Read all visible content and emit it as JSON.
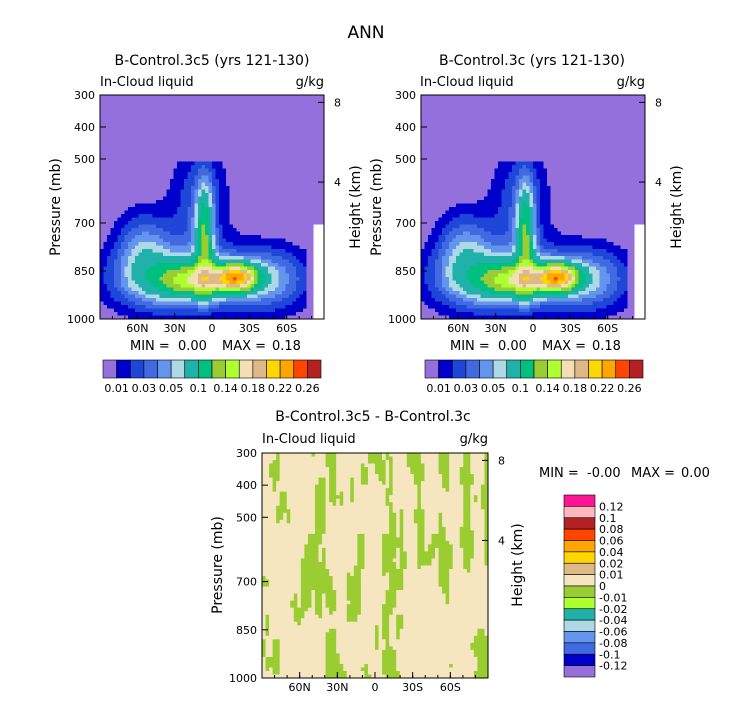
{
  "page_title": "ANN",
  "chart_data": [
    {
      "type": "heatmap",
      "title": "B-Control.3c5 (yrs 121-130)",
      "subtitle_left": "In-Cloud liquid",
      "subtitle_right": "g/kg",
      "ylabel": "Pressure (mb)",
      "ylabel_right": "Height (km)",
      "y_ticks": [
        "300",
        "400",
        "500",
        "700",
        "850",
        "1000"
      ],
      "y_tick_values": [
        300,
        400,
        500,
        700,
        850,
        1000
      ],
      "y_right_ticks": [
        "8",
        "4"
      ],
      "y_right_values": [
        8,
        4
      ],
      "x_ticks": [
        "60N",
        "30N",
        "0",
        "30S",
        "60S"
      ],
      "x_tick_values": [
        60,
        30,
        0,
        -30,
        -60
      ],
      "xlim": [
        90,
        -90
      ],
      "ylim": [
        300,
        1000
      ],
      "min_label": "MIN =",
      "min_value": "0.00",
      "max_label": "MAX =",
      "max_value": "0.18",
      "levels": [
        0.01,
        0.02,
        0.03,
        0.04,
        0.05,
        0.06,
        0.08,
        0.1,
        0.12,
        0.14,
        0.16,
        0.18,
        0.2,
        0.22,
        0.24,
        0.26
      ],
      "colorbar_labels": [
        "0.01",
        "0.03",
        "0.05",
        "0.1",
        "0.14",
        "0.18",
        "0.22",
        "0.26"
      ]
    },
    {
      "type": "heatmap",
      "title": "B-Control.3c (yrs 121-130)",
      "subtitle_left": "In-Cloud liquid",
      "subtitle_right": "g/kg",
      "ylabel": "Pressure (mb)",
      "ylabel_right": "Height (km)",
      "y_ticks": [
        "300",
        "400",
        "500",
        "700",
        "850",
        "1000"
      ],
      "y_tick_values": [
        300,
        400,
        500,
        700,
        850,
        1000
      ],
      "y_right_ticks": [
        "8",
        "4"
      ],
      "y_right_values": [
        8,
        4
      ],
      "x_ticks": [
        "60N",
        "30N",
        "0",
        "30S",
        "60S"
      ],
      "x_tick_values": [
        60,
        30,
        0,
        -30,
        -60
      ],
      "xlim": [
        90,
        -90
      ],
      "ylim": [
        300,
        1000
      ],
      "min_label": "MIN =",
      "min_value": "0.00",
      "max_label": "MAX =",
      "max_value": "0.18",
      "levels": [
        0.01,
        0.02,
        0.03,
        0.04,
        0.05,
        0.06,
        0.08,
        0.1,
        0.12,
        0.14,
        0.16,
        0.18,
        0.2,
        0.22,
        0.24,
        0.26
      ],
      "colorbar_labels": [
        "0.01",
        "0.03",
        "0.05",
        "0.1",
        "0.14",
        "0.18",
        "0.22",
        "0.26"
      ]
    },
    {
      "type": "heatmap",
      "title": "B-Control.3c5 - B-Control.3c",
      "subtitle_left": "In-Cloud liquid",
      "subtitle_right": "g/kg",
      "ylabel": "Pressure (mb)",
      "ylabel_right": "Height (km)",
      "y_ticks": [
        "300",
        "400",
        "500",
        "700",
        "850",
        "1000"
      ],
      "y_tick_values": [
        300,
        400,
        500,
        700,
        850,
        1000
      ],
      "y_right_ticks": [
        "8",
        "4"
      ],
      "y_right_values": [
        8,
        4
      ],
      "x_ticks": [
        "60N",
        "30N",
        "0",
        "30S",
        "60S"
      ],
      "x_tick_values": [
        60,
        30,
        0,
        -30,
        -60
      ],
      "xlim": [
        90,
        -90
      ],
      "ylim": [
        300,
        1000
      ],
      "min_label": "MIN =",
      "min_value": "-0.00",
      "max_label": "MAX =",
      "max_value": "0.00",
      "diff_levels": [
        0.12,
        0.1,
        0.08,
        0.06,
        0.04,
        0.02,
        0.01,
        0,
        -0.01,
        -0.02,
        -0.04,
        -0.06,
        -0.08,
        -0.1,
        -0.12
      ],
      "colorbar_labels": [
        "0.12",
        "0.1",
        "0.08",
        "0.06",
        "0.04",
        "0.02",
        "0.01",
        "0",
        "-0.01",
        "-0.02",
        "-0.04",
        "-0.06",
        "-0.08",
        "-0.1",
        "-0.12"
      ]
    }
  ],
  "colors": {
    "abs_palette": [
      "#9370db",
      "#0000cd",
      "#1e46d8",
      "#4169e1",
      "#6495ed",
      "#add8e6",
      "#20b2aa",
      "#00c080",
      "#9acd32",
      "#adff2f",
      "#f5deb3",
      "#deb887",
      "#ffd700",
      "#ffa500",
      "#ff4500",
      "#b22222",
      "#ffb6c1",
      "#ff1493"
    ],
    "diff_palette": [
      "#ff1493",
      "#ffb6c1",
      "#b22222",
      "#ff4500",
      "#ffa500",
      "#ffd700",
      "#deb887",
      "#f5e6c0",
      "#9acd32",
      "#adff2f",
      "#20b2aa",
      "#add8e6",
      "#6495ed",
      "#4169e1",
      "#0000cd",
      "#9370db"
    ],
    "diff_field_main": "#f5e6c0",
    "diff_field_stripe": "#9acd32"
  }
}
